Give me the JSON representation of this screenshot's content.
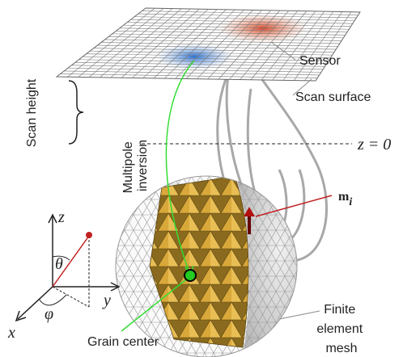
{
  "labels": {
    "sensor": "Sensor",
    "scan_surface": "Scan surface",
    "scan_height": "Scan height",
    "z_zero": "z = 0",
    "multipole_inversion": [
      "Multipole",
      "inversion"
    ],
    "moment": {
      "symbol": "m",
      "subscript": "i"
    },
    "axis_z": "z",
    "axis_y": "y",
    "axis_x": "x",
    "theta": "θ",
    "phi": "φ",
    "grain_center": "Grain center",
    "finite_element_mesh": [
      "Finite",
      "element",
      "mesh"
    ]
  }
}
